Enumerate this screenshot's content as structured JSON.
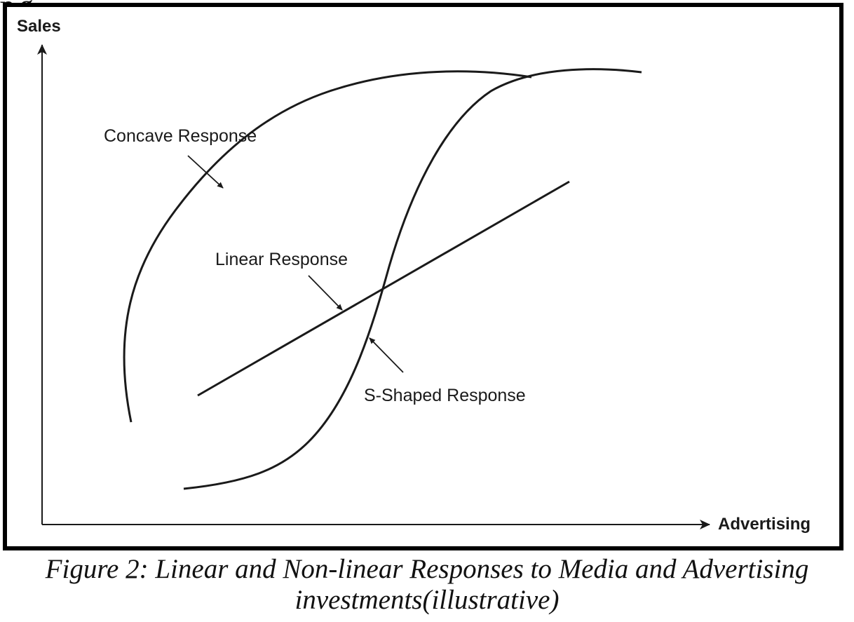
{
  "page": {
    "top_fragment": "p     g"
  },
  "diagram": {
    "y_axis_label": "Sales",
    "x_axis_label": "Advertising",
    "curves": [
      {
        "id": "concave",
        "label": "Concave Response"
      },
      {
        "id": "linear",
        "label": "Linear Response"
      },
      {
        "id": "s-shaped",
        "label": "S-Shaped Response"
      }
    ],
    "line_color": "#1a1a1a"
  },
  "caption": {
    "line1": "Figure 2: Linear and Non-linear Responses to Media and Advertising",
    "line2": "investments(illustrative)"
  }
}
